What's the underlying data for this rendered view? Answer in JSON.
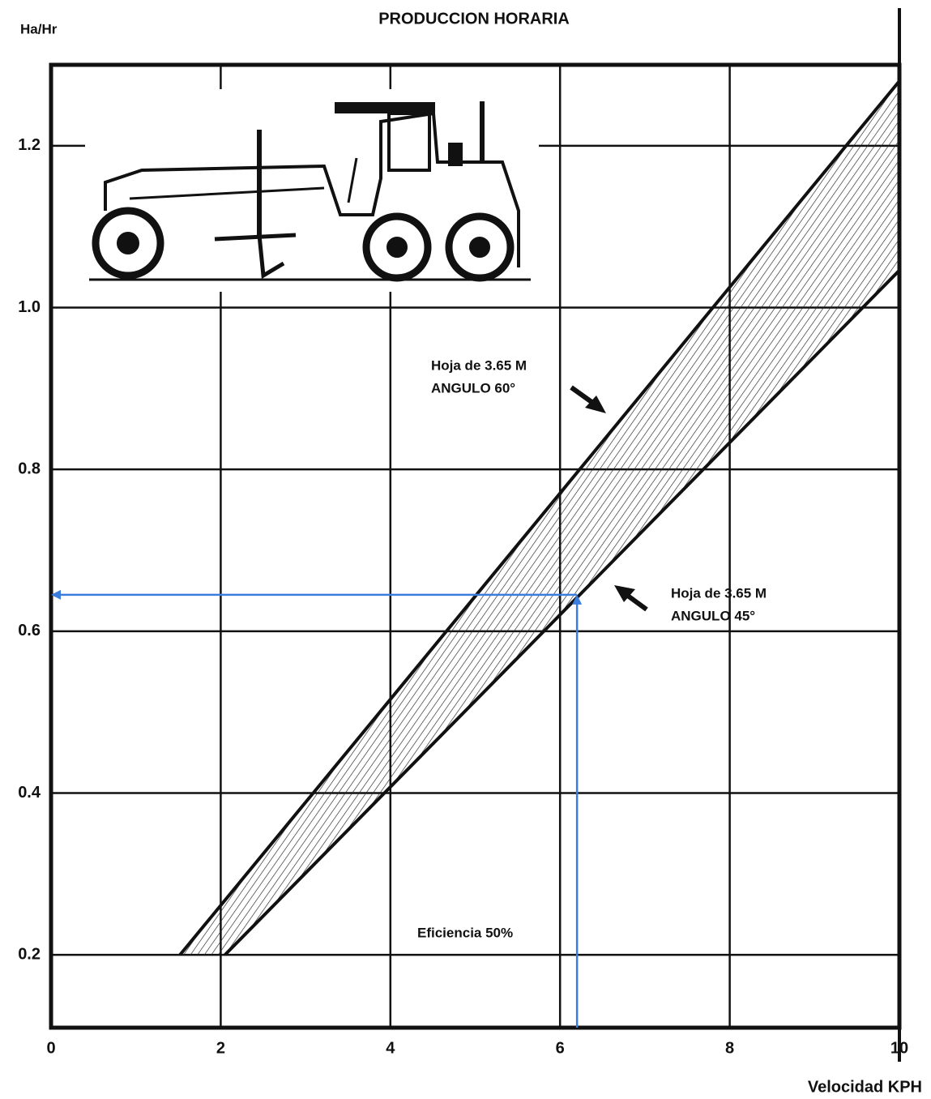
{
  "chart_data": {
    "type": "line",
    "title": "PRODUCCION HORARIA",
    "y_label": "Ha/Hr",
    "x_label": "Velocidad KPH",
    "xlim": [
      0,
      10
    ],
    "ylim": [
      0.11,
      1.3
    ],
    "xticks": [
      0,
      2,
      4,
      6,
      8,
      10
    ],
    "yticks": [
      0.2,
      0.4,
      0.6,
      0.8,
      {
        "value": 1,
        "label": "1.0"
      },
      1.2
    ],
    "grid": true,
    "fill_between": true,
    "series": [
      {
        "color": "#111111",
        "x": [
          1.52,
          10
        ],
        "values": [
          0.2,
          1.28
        ]
      },
      {
        "color": "#111111",
        "x": [
          2.05,
          10
        ],
        "values": [
          0.2,
          1.046
        ]
      }
    ],
    "reference_point": {
      "x": 6.2,
      "y": 0.645,
      "color": "#3b7ddd"
    },
    "annotations": [
      [
        "Hoja de 3.65 M",
        "ANGULO 60°"
      ],
      [
        "Hoja de 3.65 M",
        "ANGULO 45°"
      ],
      [
        "Eficiencia 50%"
      ]
    ]
  }
}
